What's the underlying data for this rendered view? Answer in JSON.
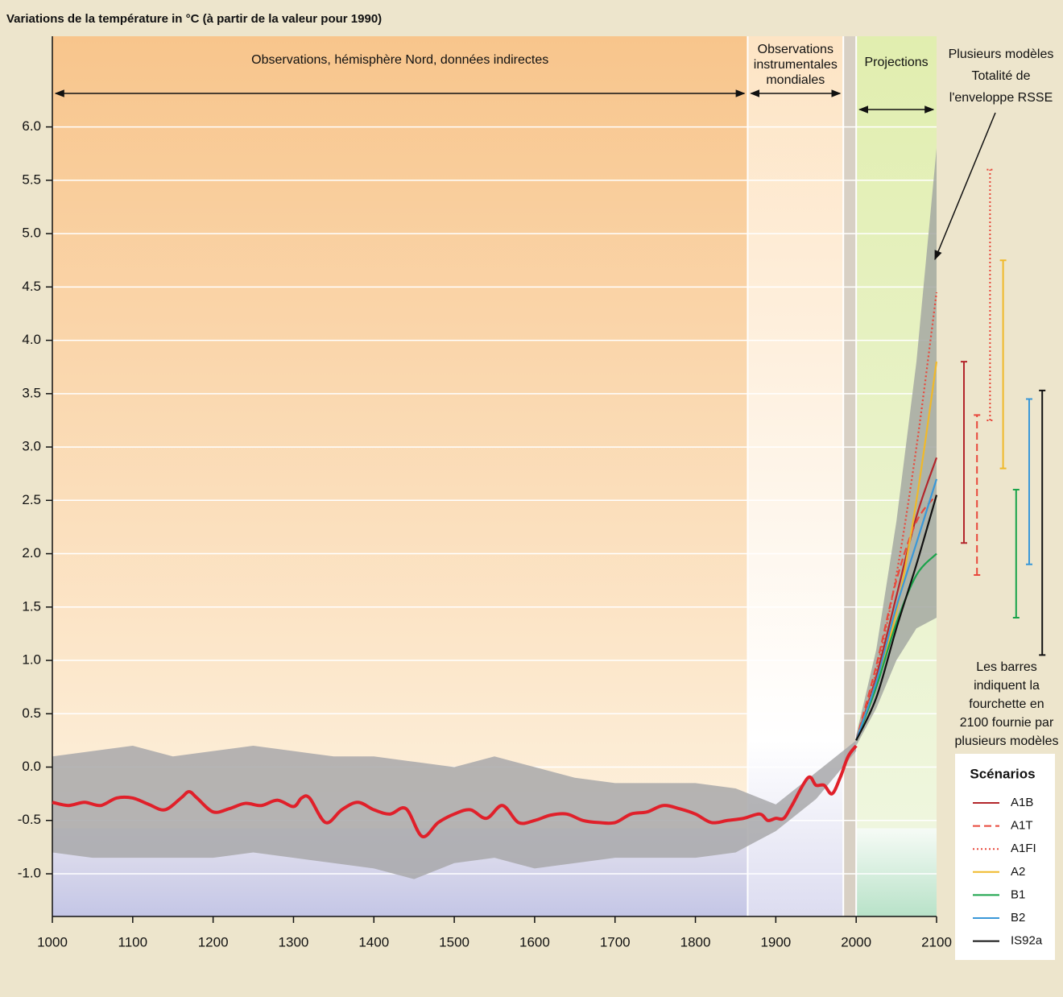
{
  "chart_data": {
    "type": "line",
    "title": "Variations de la température in °C (à partir de la valeur pour 1990)",
    "xlim": [
      1000,
      2100
    ],
    "ylim": [
      -1.4,
      6.85
    ],
    "xticks": [
      1000,
      1100,
      1200,
      1300,
      1400,
      1500,
      1600,
      1700,
      1800,
      1900,
      2000,
      2100
    ],
    "yticks": [
      {
        "value": -1.0,
        "label": "-1.0"
      },
      {
        "value": -0.5,
        "label": "-0.5"
      },
      {
        "value": 0.0,
        "label": "0.0"
      },
      {
        "value": 0.5,
        "label": "0.5"
      },
      {
        "value": 1.0,
        "label": "1.0"
      },
      {
        "value": 1.5,
        "label": "1.5"
      },
      {
        "value": 2.0,
        "label": "2.0"
      },
      {
        "value": 2.5,
        "label": "2.5"
      },
      {
        "value": 3.0,
        "label": "3.0"
      },
      {
        "value": 3.5,
        "label": "3.5"
      },
      {
        "value": 4.0,
        "label": "4.0"
      },
      {
        "value": 4.5,
        "label": "4.5"
      },
      {
        "value": 5.0,
        "label": "5.0"
      },
      {
        "value": 5.5,
        "label": "5.5"
      },
      {
        "value": 6.0,
        "label": "6.0"
      }
    ],
    "grid": true,
    "regions": [
      {
        "label": [
          "Observations, hémisphère Nord, données indirectes"
        ],
        "start": 1000,
        "end": 1865
      },
      {
        "label": [
          "Observations",
          "instrumentales",
          "mondiales"
        ],
        "start": 1865,
        "end": 1984
      },
      {
        "label": [
          "Projections"
        ],
        "start": 2000,
        "end": 2100
      }
    ],
    "bands": [
      {
        "color": "#a8a8aa",
        "x": [
          1000,
          1050,
          1100,
          1150,
          1200,
          1250,
          1300,
          1350,
          1400,
          1450,
          1500,
          1550,
          1600,
          1650,
          1700,
          1750,
          1800,
          1850,
          1900,
          1950,
          2000
        ],
        "lower": [
          -0.8,
          -0.85,
          -0.85,
          -0.85,
          -0.85,
          -0.8,
          -0.85,
          -0.9,
          -0.95,
          -1.05,
          -0.9,
          -0.85,
          -0.95,
          -0.9,
          -0.85,
          -0.85,
          -0.85,
          -0.8,
          -0.6,
          -0.3,
          0.15
        ],
        "upper": [
          0.1,
          0.15,
          0.2,
          0.1,
          0.15,
          0.2,
          0.15,
          0.1,
          0.1,
          0.05,
          0.0,
          0.1,
          0.0,
          -0.1,
          -0.15,
          -0.15,
          -0.15,
          -0.2,
          -0.35,
          -0.05,
          0.25
        ]
      },
      {
        "color": "#a4a8a2",
        "x": [
          2000,
          2025,
          2050,
          2075,
          2100
        ],
        "lower": [
          0.2,
          0.55,
          1.0,
          1.3,
          1.4
        ],
        "upper": [
          0.3,
          1.1,
          2.3,
          3.8,
          5.8
        ]
      }
    ],
    "observed": {
      "color": "#e0202a",
      "x": [
        1000,
        1020,
        1040,
        1060,
        1080,
        1100,
        1120,
        1140,
        1160,
        1170,
        1180,
        1200,
        1220,
        1240,
        1260,
        1280,
        1300,
        1310,
        1320,
        1340,
        1360,
        1380,
        1400,
        1420,
        1440,
        1460,
        1480,
        1500,
        1520,
        1540,
        1560,
        1580,
        1600,
        1620,
        1640,
        1660,
        1680,
        1700,
        1720,
        1740,
        1760,
        1780,
        1800,
        1820,
        1840,
        1860,
        1880,
        1890,
        1900,
        1910,
        1920,
        1940,
        1950,
        1960,
        1970,
        1980,
        1990,
        2000
      ],
      "values": [
        -0.33,
        -0.36,
        -0.33,
        -0.36,
        -0.29,
        -0.29,
        -0.35,
        -0.4,
        -0.29,
        -0.23,
        -0.29,
        -0.42,
        -0.39,
        -0.34,
        -0.36,
        -0.31,
        -0.37,
        -0.29,
        -0.29,
        -0.52,
        -0.4,
        -0.33,
        -0.4,
        -0.44,
        -0.39,
        -0.65,
        -0.52,
        -0.44,
        -0.4,
        -0.48,
        -0.36,
        -0.52,
        -0.5,
        -0.45,
        -0.44,
        -0.5,
        -0.52,
        -0.52,
        -0.44,
        -0.42,
        -0.36,
        -0.39,
        -0.44,
        -0.52,
        -0.5,
        -0.48,
        -0.44,
        -0.5,
        -0.48,
        -0.48,
        -0.36,
        -0.1,
        -0.17,
        -0.17,
        -0.25,
        -0.1,
        0.1,
        0.2
      ]
    },
    "series": [
      {
        "name": "A1B",
        "color": "#b3262b",
        "style": "solid",
        "x": [
          2000,
          2025,
          2050,
          2075,
          2100
        ],
        "values": [
          0.25,
          0.85,
          1.6,
          2.35,
          2.9
        ],
        "range": [
          2.1,
          3.8
        ]
      },
      {
        "name": "A1T",
        "color": "#e8483c",
        "style": "dashed",
        "x": [
          2000,
          2025,
          2050,
          2075,
          2100
        ],
        "values": [
          0.25,
          0.95,
          1.75,
          2.3,
          2.55
        ],
        "range": [
          1.8,
          3.3
        ]
      },
      {
        "name": "A1FI",
        "color": "#e8483c",
        "style": "dotted",
        "x": [
          2000,
          2025,
          2050,
          2075,
          2100
        ],
        "values": [
          0.25,
          0.9,
          1.8,
          3.0,
          4.45
        ],
        "range": [
          3.25,
          5.6
        ]
      },
      {
        "name": "A2",
        "color": "#f0b92a",
        "style": "solid",
        "x": [
          2000,
          2025,
          2050,
          2075,
          2100
        ],
        "values": [
          0.25,
          0.8,
          1.45,
          2.5,
          3.8
        ],
        "range": [
          2.8,
          4.75
        ]
      },
      {
        "name": "B1",
        "color": "#1aa34a",
        "style": "solid",
        "x": [
          2000,
          2025,
          2050,
          2075,
          2100
        ],
        "values": [
          0.25,
          0.75,
          1.35,
          1.8,
          2.0
        ],
        "range": [
          1.4,
          2.6
        ]
      },
      {
        "name": "B2",
        "color": "#3a98d8",
        "style": "solid",
        "x": [
          2000,
          2025,
          2050,
          2075,
          2100
        ],
        "values": [
          0.25,
          0.8,
          1.5,
          2.1,
          2.7
        ],
        "range": [
          1.9,
          3.45
        ]
      },
      {
        "name": "IS92a",
        "color": "#111111",
        "style": "solid",
        "x": [
          2000,
          2025,
          2050,
          2075,
          2100
        ],
        "values": [
          0.25,
          0.65,
          1.3,
          1.9,
          2.55
        ],
        "range": [
          1.05,
          3.53
        ]
      }
    ],
    "legend_title": "Scénarios",
    "annotations": [
      {
        "text": [
          "Plusieurs modèles",
          "Totalité de",
          "l'enveloppe RSSE"
        ]
      },
      {
        "text": [
          "Les barres",
          "indiquent la",
          "fourchette en",
          "2100 fournie par",
          "plusieurs modèles"
        ]
      }
    ]
  }
}
